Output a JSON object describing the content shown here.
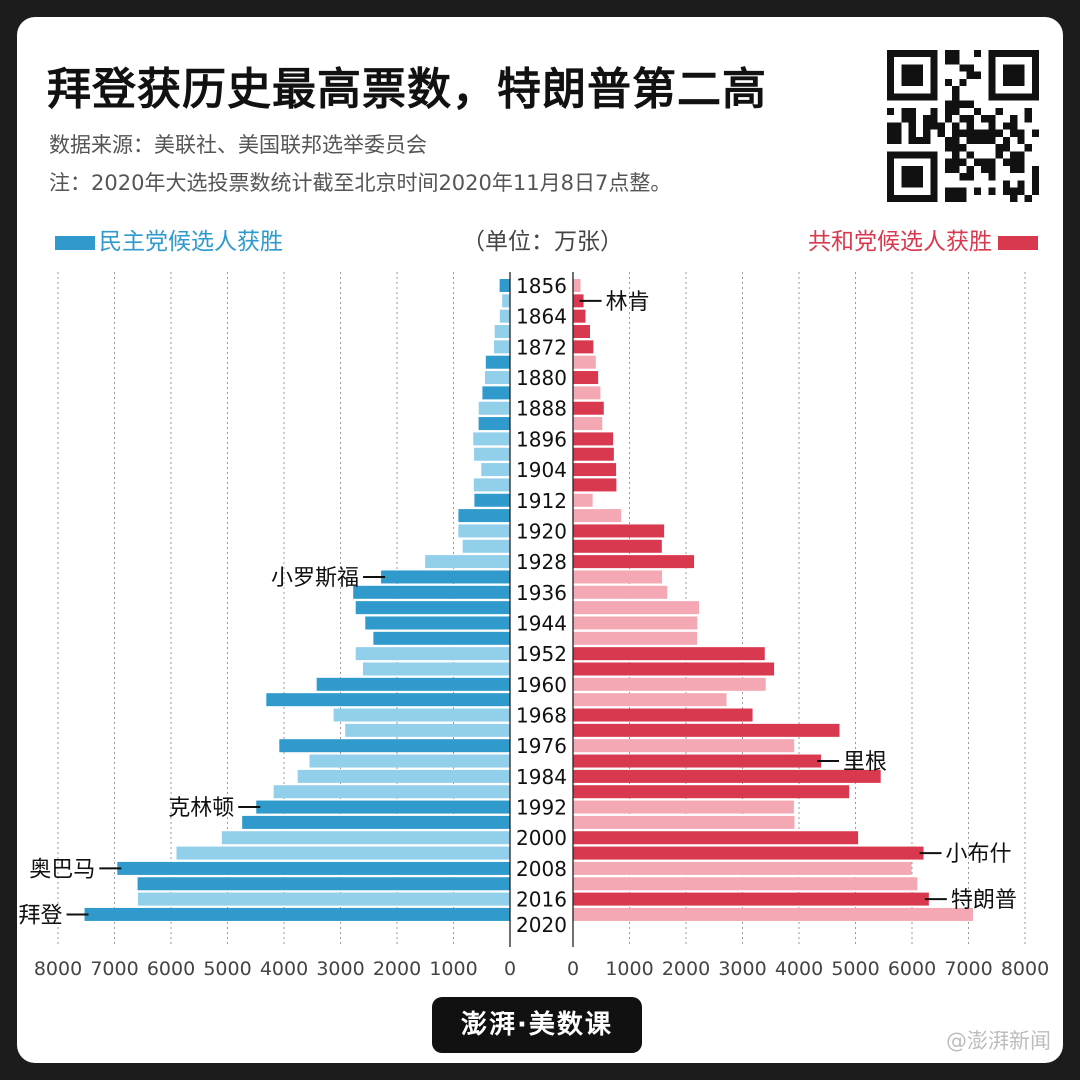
{
  "title": "拜登获历史最高票数，特朗普第二高",
  "source": "数据来源：美联社、美国联邦选举委员会",
  "note": "注：2020年大选投票数统计截至北京时间2020年11月8日7点整。",
  "legend_left": "民主党候选人获胜",
  "unit": "（单位：万张）",
  "legend_right": "共和党候选人获胜",
  "footer_logo": "澎湃·美数课",
  "watermark": "@澎湃新闻",
  "colors": {
    "dem_win": "#2f9acb",
    "dem_lose": "#91cfea",
    "rep_win": "#d9394e",
    "rep_lose": "#f4a8b4",
    "card_bg": "#ffffff",
    "frame": "#1c1c1c"
  },
  "chart_data": {
    "type": "bar",
    "orientation": "horizontal-butterfly",
    "xlim": [
      0,
      8000
    ],
    "x_ticks": [
      "0",
      "1000",
      "2000",
      "3000",
      "4000",
      "5000",
      "6000",
      "7000",
      "8000"
    ],
    "grid": true,
    "years": [
      1856,
      1860,
      1864,
      1868,
      1872,
      1876,
      1880,
      1884,
      1888,
      1892,
      1896,
      1900,
      1904,
      1908,
      1912,
      1916,
      1920,
      1924,
      1928,
      1932,
      1936,
      1940,
      1944,
      1948,
      1952,
      1956,
      1960,
      1964,
      1968,
      1972,
      1976,
      1980,
      1984,
      1988,
      1992,
      1996,
      2000,
      2004,
      2008,
      2012,
      2016,
      2020
    ],
    "year_labels": [
      "1856",
      "1864",
      "1872",
      "1880",
      "1888",
      "1896",
      "1904",
      "1912",
      "1920",
      "1928",
      "1936",
      "1944",
      "1952",
      "1960",
      "1968",
      "1976",
      "1984",
      "1992",
      "2000",
      "2008",
      "2016",
      "2020"
    ],
    "winner": [
      "D",
      "R",
      "R",
      "R",
      "R",
      "D",
      "R",
      "D",
      "R",
      "D",
      "R",
      "R",
      "R",
      "R",
      "D",
      "D",
      "R",
      "R",
      "R",
      "D",
      "D",
      "D",
      "D",
      "D",
      "R",
      "R",
      "D",
      "D",
      "R",
      "R",
      "D",
      "R",
      "R",
      "R",
      "D",
      "D",
      "R",
      "R",
      "D",
      "D",
      "R",
      "D"
    ],
    "series": [
      {
        "name": "民主党",
        "values": [
          184,
          138,
          180,
          271,
          283,
          428,
          444,
          488,
          554,
          556,
          651,
          636,
          508,
          641,
          630,
          913,
          914,
          838,
          1502,
          2282,
          2775,
          2731,
          2561,
          2418,
          2731,
          2603,
          3422,
          4313,
          3122,
          2917,
          4083,
          3548,
          3758,
          4183,
          4491,
          4740,
          5100,
          5903,
          6950,
          6592,
          6585,
          7530
        ]
      },
      {
        "name": "共和党",
        "values": [
          134,
          187,
          221,
          301,
          360,
          403,
          445,
          485,
          545,
          518,
          710,
          723,
          763,
          768,
          348,
          853,
          1613,
          1572,
          2143,
          1576,
          1668,
          2231,
          2201,
          2197,
          3394,
          3559,
          3411,
          2718,
          3178,
          4717,
          3915,
          4390,
          5446,
          4888,
          3910,
          3920,
          5046,
          6204,
          5993,
          6093,
          6298,
          7080
        ]
      }
    ],
    "annotations": [
      {
        "text": "林肯",
        "side": "right",
        "year": 1860
      },
      {
        "text": "小罗斯福",
        "side": "left",
        "year": 1932
      },
      {
        "text": "里根",
        "side": "right",
        "year": 1980
      },
      {
        "text": "克林顿",
        "side": "left",
        "year": 1992
      },
      {
        "text": "小布什",
        "side": "right",
        "year": 2004
      },
      {
        "text": "奥巴马",
        "side": "left",
        "year": 2008
      },
      {
        "text": "特朗普",
        "side": "right",
        "year": 2016
      },
      {
        "text": "拜登",
        "side": "left",
        "year": 2020
      }
    ]
  }
}
